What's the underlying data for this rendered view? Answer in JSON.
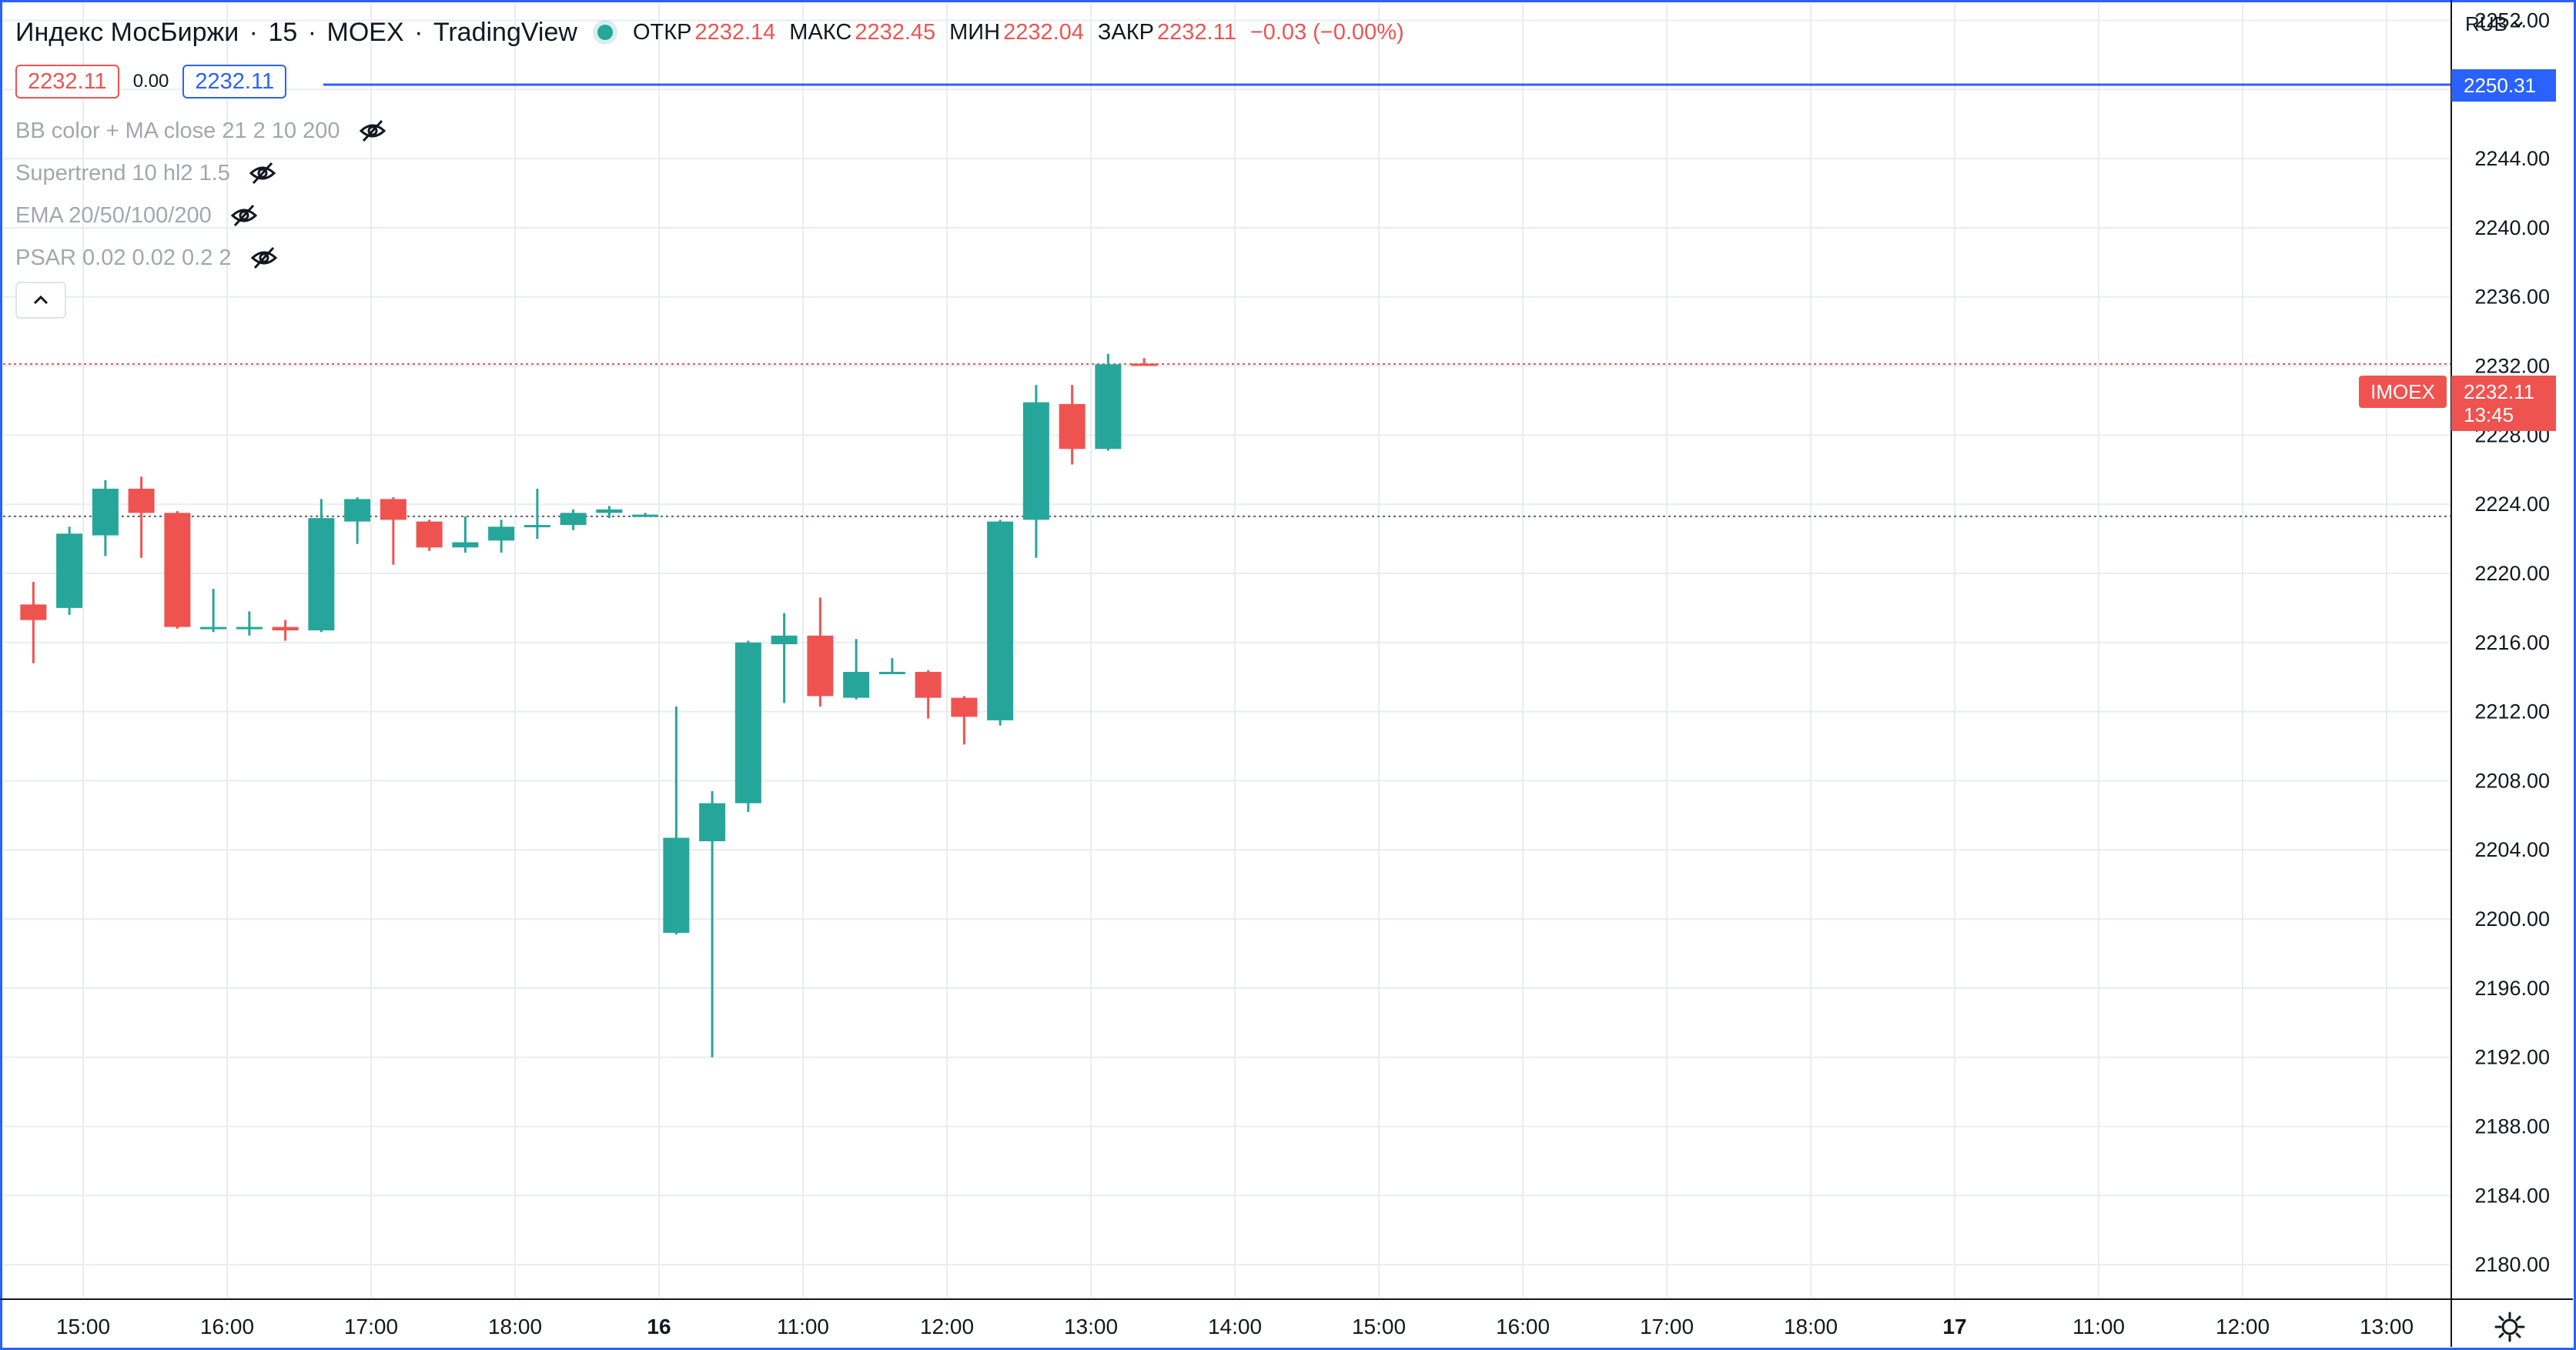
{
  "header": {
    "symbol_name": "Индекс МосБиржи",
    "interval": "15",
    "exchange": "MOEX",
    "provider": "TradingView",
    "ohlc": {
      "open_label": "ОТКР",
      "open": "2232.14",
      "high_label": "МАКС",
      "high": "2232.45",
      "low_label": "МИН",
      "low": "2232.04",
      "close_label": "ЗАКР",
      "close": "2232.11",
      "change": "−0.03 (−0.00%)"
    }
  },
  "trade_buttons": {
    "sell_price": "2232.11",
    "spread": "0.00",
    "buy_price": "2232.11"
  },
  "indicators": [
    {
      "label": "BB color + MA close 21 2 10 200"
    },
    {
      "label": "Supertrend 10 hl2 1.5"
    },
    {
      "label": "EMA 20/50/100/200"
    },
    {
      "label": "PSAR 0.02 0.02 0.2 2"
    }
  ],
  "price_axis": {
    "currency": "RUB",
    "crosshair_price": "2250.31",
    "symbol_tag": "IMOEX",
    "last_price": "2232.11",
    "countdown": "13:45"
  },
  "colors": {
    "up": "#26a69a",
    "down": "#ef5350",
    "accent": "#2962ff",
    "grid": "#e9ecf2"
  },
  "chart_data": {
    "type": "candlestick",
    "ylim": [
      2178,
      2253
    ],
    "y_ticks": [
      2180,
      2184,
      2188,
      2192,
      2196,
      2200,
      2204,
      2208,
      2212,
      2216,
      2220,
      2224,
      2228,
      2232,
      2236,
      2240,
      2244,
      2248,
      2252
    ],
    "y_tick_labels": [
      "2180.00",
      "2184.00",
      "2188.00",
      "2192.00",
      "2196.00",
      "2200.00",
      "2204.00",
      "2208.00",
      "2212.00",
      "2216.00",
      "2220.00",
      "2224.00",
      "2228.00",
      "2232.00",
      "2236.00",
      "2240.00",
      "2244.00",
      "2248.00",
      "2252.00"
    ],
    "x_tick_labels": [
      "15:00",
      "16:00",
      "17:00",
      "18:00",
      "16",
      "11:00",
      "12:00",
      "13:00",
      "14:00",
      "15:00",
      "16:00",
      "17:00",
      "18:00",
      "17",
      "11:00",
      "12:00",
      "13:00"
    ],
    "x_tick_bold": [
      false,
      false,
      false,
      false,
      true,
      false,
      false,
      false,
      false,
      false,
      false,
      false,
      false,
      true,
      false,
      false,
      false
    ],
    "previous_close": 2223.3,
    "last_price": 2232.11,
    "candles": [
      {
        "o": 2218.2,
        "h": 2219.5,
        "l": 2214.8,
        "c": 2217.3
      },
      {
        "o": 2218.0,
        "h": 2222.7,
        "l": 2217.6,
        "c": 2222.3
      },
      {
        "o": 2222.2,
        "h": 2225.4,
        "l": 2221.0,
        "c": 2224.9
      },
      {
        "o": 2224.9,
        "h": 2225.6,
        "l": 2220.9,
        "c": 2223.5
      },
      {
        "o": 2223.5,
        "h": 2223.6,
        "l": 2216.8,
        "c": 2216.9
      },
      {
        "o": 2216.9,
        "h": 2219.1,
        "l": 2216.6,
        "c": 2216.9
      },
      {
        "o": 2216.8,
        "h": 2217.8,
        "l": 2216.4,
        "c": 2216.9
      },
      {
        "o": 2216.9,
        "h": 2217.3,
        "l": 2216.1,
        "c": 2216.7
      },
      {
        "o": 2216.7,
        "h": 2224.3,
        "l": 2216.6,
        "c": 2223.2
      },
      {
        "o": 2223.0,
        "h": 2224.4,
        "l": 2221.7,
        "c": 2224.3
      },
      {
        "o": 2224.3,
        "h": 2224.4,
        "l": 2220.5,
        "c": 2223.1
      },
      {
        "o": 2223.0,
        "h": 2223.1,
        "l": 2221.3,
        "c": 2221.5
      },
      {
        "o": 2221.5,
        "h": 2223.3,
        "l": 2221.2,
        "c": 2221.8
      },
      {
        "o": 2221.9,
        "h": 2223.1,
        "l": 2221.2,
        "c": 2222.7
      },
      {
        "o": 2222.8,
        "h": 2224.9,
        "l": 2222.0,
        "c": 2222.8
      },
      {
        "o": 2222.8,
        "h": 2223.7,
        "l": 2222.5,
        "c": 2223.5
      },
      {
        "o": 2223.5,
        "h": 2223.9,
        "l": 2223.2,
        "c": 2223.7
      },
      {
        "o": 2223.4,
        "h": 2223.5,
        "l": 2223.3,
        "c": 2223.4
      },
      {
        "o": 2199.2,
        "h": 2212.3,
        "l": 2199.1,
        "c": 2204.7
      },
      {
        "o": 2204.5,
        "h": 2207.4,
        "l": 2192.0,
        "c": 2206.7
      },
      {
        "o": 2206.7,
        "h": 2216.1,
        "l": 2206.2,
        "c": 2216.0
      },
      {
        "o": 2215.9,
        "h": 2217.7,
        "l": 2212.5,
        "c": 2216.4
      },
      {
        "o": 2216.4,
        "h": 2218.6,
        "l": 2212.3,
        "c": 2212.9
      },
      {
        "o": 2212.8,
        "h": 2216.2,
        "l": 2212.7,
        "c": 2214.3
      },
      {
        "o": 2214.3,
        "h": 2215.1,
        "l": 2214.2,
        "c": 2214.3
      },
      {
        "o": 2214.3,
        "h": 2214.4,
        "l": 2211.6,
        "c": 2212.8
      },
      {
        "o": 2212.8,
        "h": 2212.9,
        "l": 2210.1,
        "c": 2211.7
      },
      {
        "o": 2211.5,
        "h": 2223.1,
        "l": 2211.2,
        "c": 2223.0
      },
      {
        "o": 2223.1,
        "h": 2230.9,
        "l": 2220.9,
        "c": 2229.9
      },
      {
        "o": 2229.8,
        "h": 2230.9,
        "l": 2226.3,
        "c": 2227.2
      },
      {
        "o": 2227.2,
        "h": 2232.7,
        "l": 2227.1,
        "c": 2232.1
      },
      {
        "o": 2232.14,
        "h": 2232.45,
        "l": 2232.04,
        "c": 2232.11
      }
    ]
  }
}
